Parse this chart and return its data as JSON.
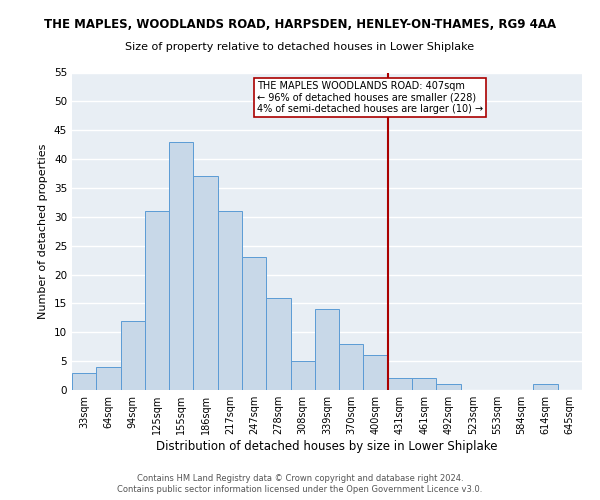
{
  "title": "THE MAPLES, WOODLANDS ROAD, HARPSDEN, HENLEY-ON-THAMES, RG9 4AA",
  "subtitle": "Size of property relative to detached houses in Lower Shiplake",
  "xlabel": "Distribution of detached houses by size in Lower Shiplake",
  "ylabel": "Number of detached properties",
  "categories": [
    "33sqm",
    "64sqm",
    "94sqm",
    "125sqm",
    "155sqm",
    "186sqm",
    "217sqm",
    "247sqm",
    "278sqm",
    "308sqm",
    "339sqm",
    "370sqm",
    "400sqm",
    "431sqm",
    "461sqm",
    "492sqm",
    "523sqm",
    "553sqm",
    "584sqm",
    "614sqm",
    "645sqm"
  ],
  "values": [
    3,
    4,
    12,
    31,
    43,
    37,
    31,
    23,
    16,
    5,
    14,
    8,
    6,
    2,
    2,
    1,
    0,
    0,
    0,
    1,
    0
  ],
  "bar_color": "#c8d8e8",
  "bar_edge_color": "#5b9bd5",
  "vline_x": 12.5,
  "vline_label": "THE MAPLES WOODLANDS ROAD: 407sqm",
  "vline_line2": "← 96% of detached houses are smaller (228)",
  "vline_line3": "4% of semi-detached houses are larger (10) →",
  "vline_color": "#aa0000",
  "annotation_box_color": "#aa0000",
  "background_color": "#e8eef4",
  "grid_color": "#ffffff",
  "ylim": [
    0,
    55
  ],
  "yticks": [
    0,
    5,
    10,
    15,
    20,
    25,
    30,
    35,
    40,
    45,
    50,
    55
  ],
  "footer_line1": "Contains HM Land Registry data © Crown copyright and database right 2024.",
  "footer_line2": "Contains public sector information licensed under the Open Government Licence v3.0.",
  "title_fontsize": 8.5,
  "subtitle_fontsize": 8.0,
  "xlabel_fontsize": 8.5,
  "ylabel_fontsize": 8.0,
  "tick_fontsize": 7.0,
  "annotation_fontsize": 7.0,
  "footer_fontsize": 6.0
}
